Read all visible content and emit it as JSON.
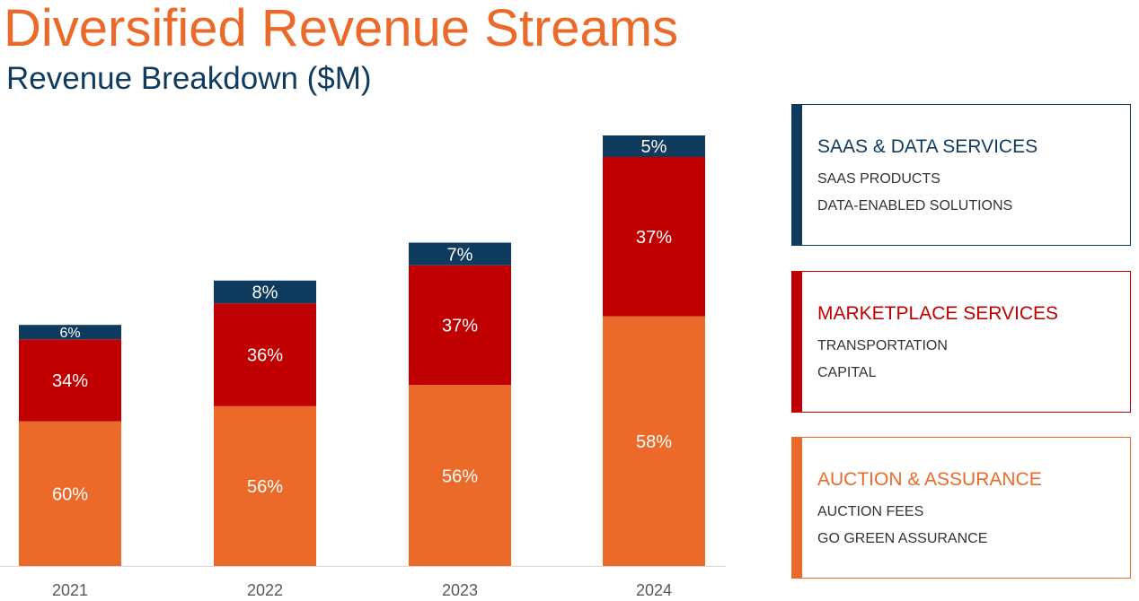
{
  "header": {
    "title": "Diversified Revenue Streams",
    "subtitle": "Revenue Breakdown ($M)"
  },
  "colors": {
    "title": "#EB6A2A",
    "subtitle": "#0E3B5E",
    "saas": "#0E3B5E",
    "marketplace": "#C00000",
    "auction": "#EB6A2A",
    "axis": "#D9D9D9",
    "tick": "#595959"
  },
  "chart_data": {
    "type": "bar",
    "stacked": true,
    "categories": [
      "2021",
      "2022",
      "2023",
      "2024"
    ],
    "series": [
      {
        "key": "auction",
        "values": [
          60,
          56,
          56,
          58
        ],
        "labels": [
          "60%",
          "56%",
          "56%",
          "58%"
        ]
      },
      {
        "key": "marketplace",
        "values": [
          34,
          36,
          37,
          37
        ],
        "labels": [
          "34%",
          "36%",
          "37%",
          "37%"
        ]
      },
      {
        "key": "saas",
        "values": [
          6,
          8,
          7,
          5
        ],
        "labels": [
          "6%",
          "8%",
          "7%",
          "5%"
        ]
      }
    ],
    "totals_relative": [
      0.56,
      0.663,
      0.751,
      1.0
    ],
    "grid": false,
    "legend": "right"
  },
  "legend": [
    {
      "key": "saas",
      "title": "SAAS & DATA SERVICES",
      "items": [
        "SAAS PRODUCTS",
        "DATA-ENABLED SOLUTIONS"
      ]
    },
    {
      "key": "marketplace",
      "title": "MARKETPLACE SERVICES",
      "items": [
        "TRANSPORTATION",
        "CAPITAL"
      ]
    },
    {
      "key": "auction",
      "title": "AUCTION & ASSURANCE",
      "items": [
        "AUCTION FEES",
        "GO GREEN ASSURANCE"
      ]
    }
  ]
}
